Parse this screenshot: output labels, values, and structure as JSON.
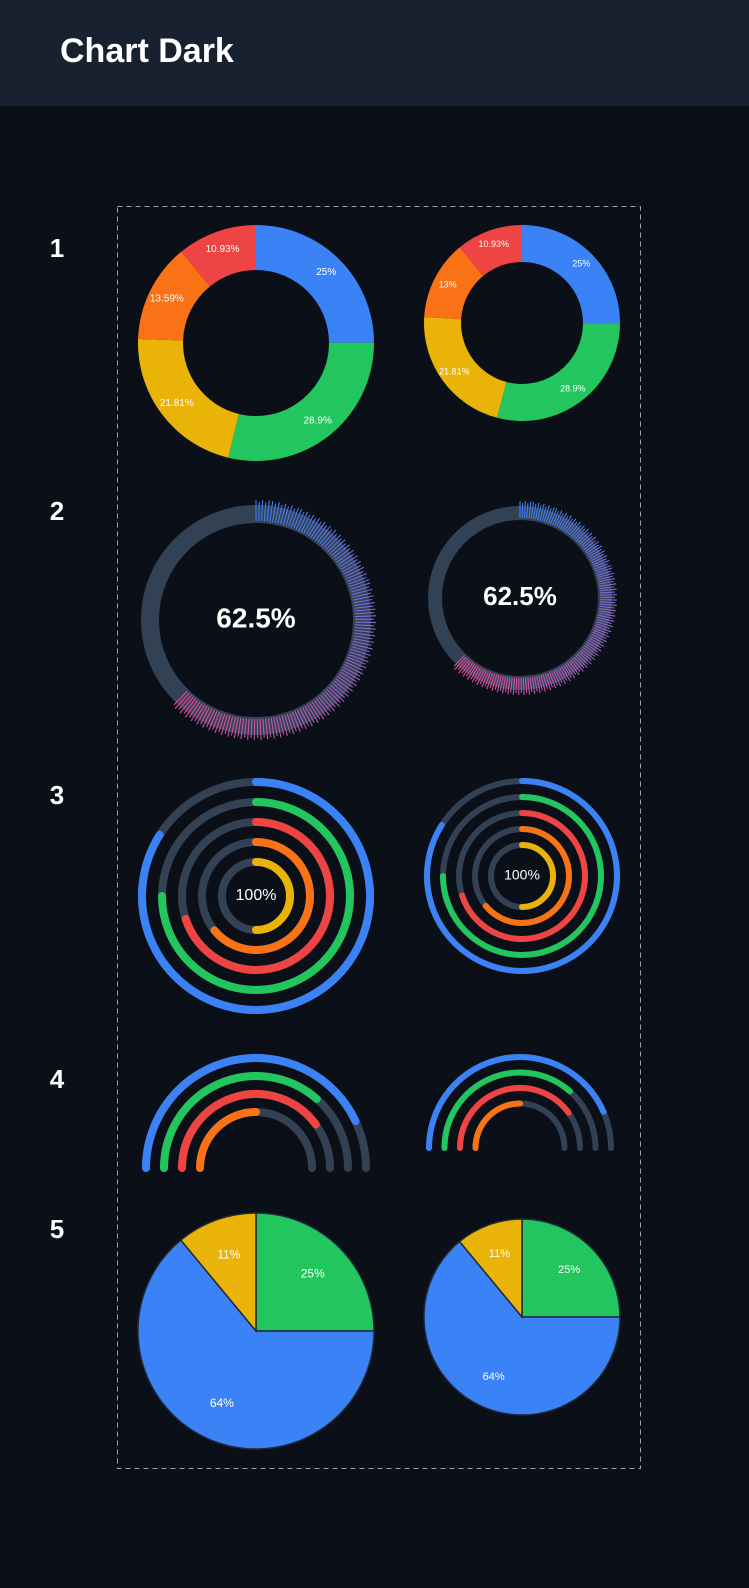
{
  "page_title": "Chart Dark",
  "row_labels": [
    "1",
    "2",
    "3",
    "4",
    "5"
  ],
  "chart_data": [
    {
      "type": "donut",
      "values": [
        25,
        28.9,
        21.81,
        13.59,
        10.93
      ],
      "value_labels": [
        "25%",
        "28.9%",
        "21.81%",
        "13.59%",
        "10.93%"
      ],
      "colors": [
        "#3b82f6",
        "#22c55e",
        "#eab308",
        "#f97316",
        "#ef4444"
      ]
    },
    {
      "type": "donut",
      "values": [
        25,
        28.9,
        21.81,
        13,
        10.93
      ],
      "value_labels": [
        "25%",
        "28.9%",
        "21.81%",
        "13%",
        "10.93%"
      ],
      "colors": [
        "#3b82f6",
        "#22c55e",
        "#eab308",
        "#f97316",
        "#ef4444"
      ]
    },
    {
      "type": "gauge",
      "values": [
        62.5
      ],
      "value_labels": [
        "62.5%"
      ],
      "colors": [
        "#3b82f6",
        "#ec4899"
      ],
      "track_color": "#334155"
    },
    {
      "type": "gauge",
      "values": [
        62.5
      ],
      "value_labels": [
        "62.5%"
      ],
      "colors": [
        "#3b82f6",
        "#ec4899"
      ],
      "track_color": "#334155"
    },
    {
      "type": "radial",
      "values": [
        84,
        75,
        70,
        64,
        50
      ],
      "center_label": "100%",
      "colors": [
        "#3b82f6",
        "#22c55e",
        "#ef4444",
        "#f97316",
        "#eab308"
      ],
      "track_color": "#334155"
    },
    {
      "type": "radial",
      "values": [
        84,
        75,
        70,
        64,
        50
      ],
      "center_label": "100%",
      "colors": [
        "#3b82f6",
        "#22c55e",
        "#ef4444",
        "#f97316",
        "#eab308"
      ],
      "track_color": "#334155"
    },
    {
      "type": "semi",
      "values": [
        86,
        73,
        80,
        50
      ],
      "colors": [
        "#3b82f6",
        "#22c55e",
        "#ef4444",
        "#f97316"
      ],
      "track_color": "#334155"
    },
    {
      "type": "semi",
      "values": [
        87,
        73,
        80,
        50
      ],
      "colors": [
        "#3b82f6",
        "#22c55e",
        "#ef4444",
        "#f97316"
      ],
      "track_color": "#334155"
    },
    {
      "type": "pie",
      "values": [
        25,
        64,
        11
      ],
      "value_labels": [
        "25%",
        "64%",
        "11%"
      ],
      "colors": [
        "#22c55e",
        "#3b82f6",
        "#eab308"
      ]
    },
    {
      "type": "pie",
      "values": [
        25,
        64,
        11
      ],
      "value_labels": [
        "25%",
        "64%",
        "11%"
      ],
      "colors": [
        "#22c55e",
        "#3b82f6",
        "#eab308"
      ]
    }
  ]
}
